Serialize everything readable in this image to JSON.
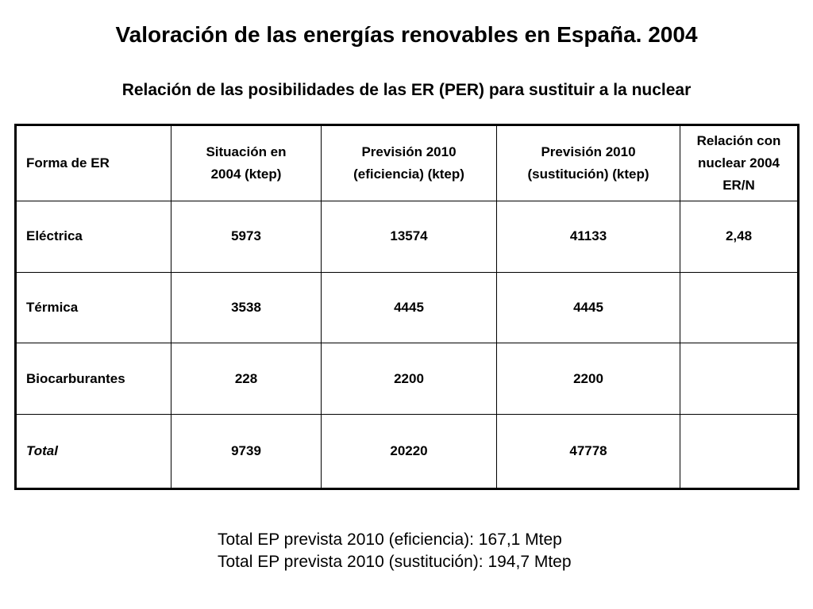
{
  "title": "Valoración de las energías renovables en España. 2004",
  "subtitle": "Relación de las posibilidades de las ER (PER) para sustituir a la nuclear",
  "table": {
    "headers": {
      "col1": "Forma de ER",
      "col2_l1": "Situación en",
      "col2_l2": "2004 (ktep)",
      "col3_l1": "Previsión 2010",
      "col3_l2": "(eficiencia) (ktep)",
      "col4_l1": "Previsión 2010",
      "col4_l2": "(sustitución) (ktep)",
      "col5_l1": "Relación con",
      "col5_l2": "nuclear 2004",
      "col5_l3": "ER/N"
    },
    "rows": [
      {
        "forma": "Eléctrica",
        "situacion": "5973",
        "eficiencia": "13574",
        "sustitucion": "41133",
        "relacion": "2,48"
      },
      {
        "forma": "Térmica",
        "situacion": "3538",
        "eficiencia": "4445",
        "sustitucion": "4445",
        "relacion": ""
      },
      {
        "forma": "Biocarburantes",
        "situacion": "228",
        "eficiencia": "2200",
        "sustitucion": "2200",
        "relacion": ""
      },
      {
        "forma": "Total",
        "situacion": "9739",
        "eficiencia": "20220",
        "sustitucion": "47778",
        "relacion": ""
      }
    ]
  },
  "notes": {
    "line1": "Total EP prevista 2010 (eficiencia): 167,1 Mtep",
    "line2": "Total EP prevista 2010 (sustitución): 194,7 Mtep"
  }
}
